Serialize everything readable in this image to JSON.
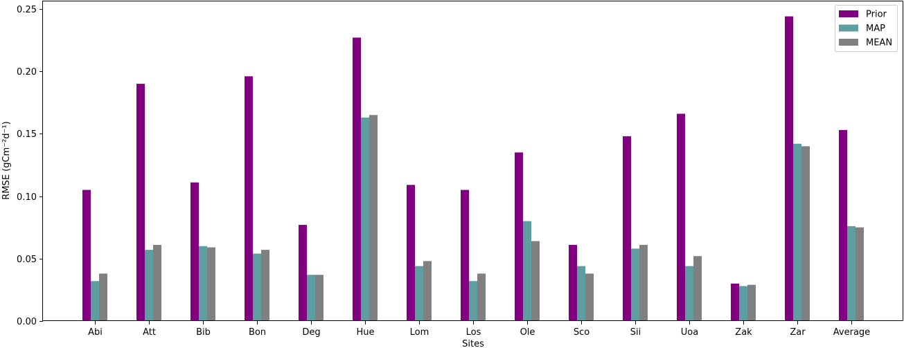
{
  "chart_data": {
    "type": "bar",
    "xlabel": "Sites",
    "ylabel": "RMSE (gCm⁻²d⁻¹)",
    "ylim": [
      0,
      0.256
    ],
    "yticks": [
      "0.00",
      "0.05",
      "0.10",
      "0.15",
      "0.20",
      "0.25"
    ],
    "categories": [
      "Abi",
      "Att",
      "Bib",
      "Bon",
      "Deg",
      "Hue",
      "Lom",
      "Los",
      "Ole",
      "Sco",
      "Sii",
      "Uoa",
      "Zak",
      "Zar",
      "Average"
    ],
    "series": [
      {
        "name": "Prior",
        "color": "#800080",
        "values": [
          0.105,
          0.19,
          0.111,
          0.196,
          0.077,
          0.227,
          0.109,
          0.105,
          0.135,
          0.061,
          0.148,
          0.166,
          0.03,
          0.244,
          0.153
        ]
      },
      {
        "name": "MAP",
        "color": "#5f9ea0",
        "values": [
          0.032,
          0.057,
          0.06,
          0.054,
          0.037,
          0.163,
          0.044,
          0.032,
          0.08,
          0.044,
          0.058,
          0.044,
          0.028,
          0.142,
          0.076
        ]
      },
      {
        "name": "MEAN",
        "color": "#808080",
        "values": [
          0.038,
          0.061,
          0.059,
          0.057,
          0.037,
          0.165,
          0.048,
          0.038,
          0.064,
          0.038,
          0.061,
          0.052,
          0.029,
          0.14,
          0.075
        ]
      }
    ],
    "grid": false,
    "legend_position": "top-right"
  }
}
